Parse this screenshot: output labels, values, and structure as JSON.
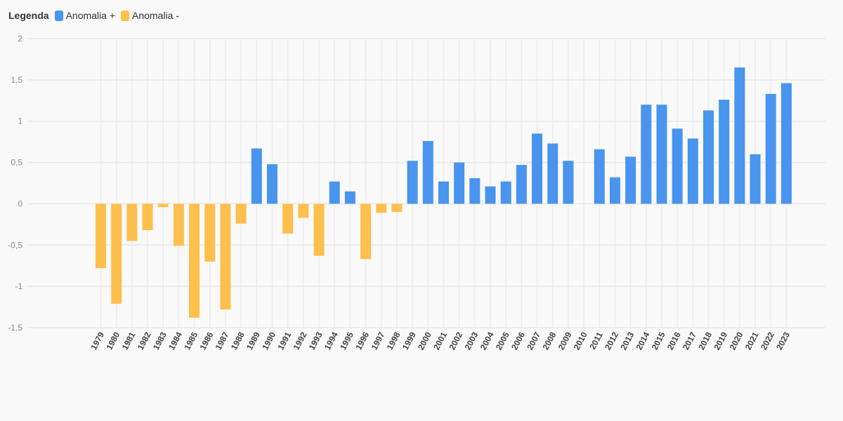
{
  "legend": {
    "title": "Legenda",
    "items": [
      {
        "label": "Anomalia +",
        "color": "#4894ee"
      },
      {
        "label": "Anomalia -",
        "color": "#ffbf4d"
      }
    ]
  },
  "chart_data": {
    "type": "bar",
    "title": "",
    "xlabel": "",
    "ylabel": "",
    "ylim": [
      -1.5,
      2
    ],
    "yticks": [
      2,
      1.5,
      1,
      0.5,
      0,
      -0.5,
      -1,
      -1.5
    ],
    "ytick_labels": [
      "2",
      "1,5",
      "1",
      "0,5",
      "0",
      "-0,5",
      "-1",
      "-1,5"
    ],
    "grid": true,
    "legend_position": "top-left",
    "positive_color": "#4894ee",
    "negative_color": "#ffbf4d",
    "categories": [
      "1979",
      "1980",
      "1981",
      "1982",
      "1983",
      "1984",
      "1985",
      "1986",
      "1987",
      "1988",
      "1989",
      "1990",
      "1991",
      "1992",
      "1993",
      "1994",
      "1995",
      "1996",
      "1997",
      "1998",
      "1999",
      "2000",
      "2001",
      "2002",
      "2003",
      "2004",
      "2005",
      "2006",
      "2007",
      "2008",
      "2009",
      "2010",
      "2011",
      "2012",
      "2013",
      "2014",
      "2015",
      "2016",
      "2017",
      "2018",
      "2019",
      "2020",
      "2021",
      "2022",
      "2023"
    ],
    "series": [
      {
        "name": "Anomalia +",
        "values": [
          null,
          null,
          null,
          null,
          null,
          null,
          null,
          null,
          null,
          null,
          0.67,
          0.48,
          null,
          null,
          null,
          0.27,
          0.15,
          null,
          null,
          null,
          0.52,
          0.76,
          0.27,
          0.5,
          0.31,
          0.21,
          0.27,
          0.47,
          0.85,
          0.73,
          0.52,
          null,
          0.66,
          0.32,
          0.57,
          1.2,
          1.2,
          0.91,
          0.79,
          1.13,
          1.26,
          1.65,
          0.6,
          1.33,
          1.46
        ]
      },
      {
        "name": "Anomalia -",
        "values": [
          -0.78,
          -1.21,
          -0.45,
          -0.32,
          -0.04,
          -0.51,
          -1.38,
          -0.7,
          -1.28,
          -0.24,
          null,
          null,
          -0.36,
          -0.17,
          -0.63,
          null,
          null,
          -0.67,
          -0.11,
          -0.1,
          null,
          null,
          null,
          null,
          null,
          null,
          null,
          null,
          null,
          null,
          null,
          null,
          null,
          null,
          null,
          null,
          null,
          null,
          null,
          null,
          null,
          null,
          null,
          null,
          null
        ]
      }
    ]
  }
}
